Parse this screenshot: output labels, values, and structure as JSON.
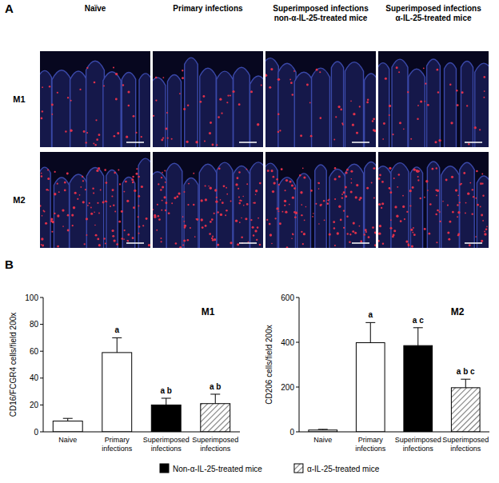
{
  "figure": {
    "panel_a": {
      "letter": "A",
      "columns": [
        "Naïve",
        "Primary infections",
        "Superimposed infections non-α-IL-25-treated mice",
        "Superimposed infections α-IL-25-treated mice"
      ],
      "rows": [
        "M1",
        "M2"
      ]
    },
    "panel_b": {
      "letter": "B"
    },
    "figure_legend": [
      {
        "name": "Non-α-IL-25-treated mice",
        "color": "#000000"
      },
      {
        "name": "α-IL-25-treated mice",
        "color": "#7a7a7a"
      }
    ]
  },
  "chart_data": [
    {
      "type": "bar",
      "title": "M1",
      "ylabel": "CD16/FCGR4 cells/field 200x",
      "categories": [
        "Naive",
        "Primary infections",
        "Superimposed infections",
        "Superimposed infections"
      ],
      "values": [
        8,
        59,
        20,
        21
      ],
      "errors": [
        2,
        11,
        5,
        7
      ],
      "colors": [
        "#ffffff",
        "#ffffff",
        "#000000",
        "#7a7a7a"
      ],
      "significance": [
        null,
        "a",
        "a b",
        "a b"
      ],
      "ylim": [
        0,
        100
      ],
      "yticks": [
        0,
        20,
        40,
        60,
        80,
        100
      ]
    },
    {
      "type": "bar",
      "title": "M2",
      "ylabel": "CD206 cells/field 200x",
      "categories": [
        "Naive",
        "Primary infections",
        "Superimposed infections",
        "Superimposed infections"
      ],
      "values": [
        8,
        398,
        385,
        197
      ],
      "errors": [
        3,
        90,
        80,
        38
      ],
      "colors": [
        "#ffffff",
        "#ffffff",
        "#000000",
        "#7a7a7a"
      ],
      "significance": [
        null,
        "a",
        "a c",
        "a b c"
      ],
      "ylim": [
        0,
        600
      ],
      "yticks": [
        0,
        200,
        400,
        600
      ]
    }
  ]
}
